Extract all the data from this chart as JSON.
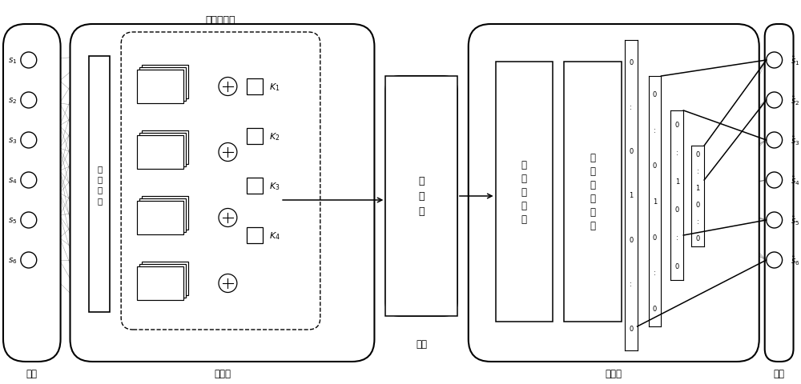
{
  "bg_color": "#ffffff",
  "fig_width": 10.0,
  "fig_height": 4.81,
  "input_labels": [
    "$s_1$",
    "$s_2$",
    "$s_3$",
    "$s_4$",
    "$s_5$",
    "$s_6$"
  ],
  "output_labels": [
    "$\\hat{s}_1$",
    "$\\hat{s}_2$",
    "$\\hat{s}_3$",
    "$\\hat{s}_4$",
    "$\\hat{s}_5$",
    "$\\hat{s}_6$"
  ],
  "k_labels": [
    "$K_1$",
    "$K_2$",
    "$K_3$",
    "$K_4$"
  ],
  "section_bottom_labels": [
    "输入",
    "编码器",
    "信道",
    "解码器",
    "输出"
  ],
  "codeword_mapper_label": "码字映射器",
  "input_noise_label": "输\n入\n噪\n声",
  "noise_layer_label": "噪\n声\n层",
  "fc_label": "全\n连\n接\n网\n络",
  "activation_label": "输\n出\n激\n活\n函\n数"
}
